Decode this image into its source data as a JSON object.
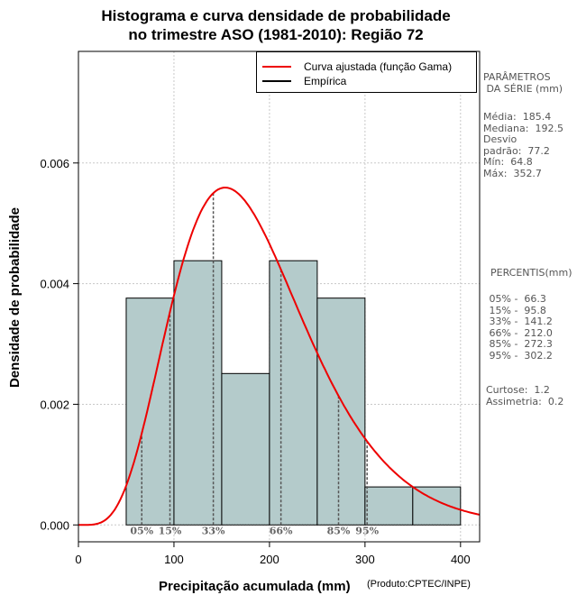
{
  "chart_data": {
    "type": "bar",
    "title_line1": "Histograma e curva densidade de probabilidade",
    "title_line2": "no trimestre ASO (1981-2010): Região 72",
    "xlabel": "Precipitação acumulada (mm)",
    "ylabel": "Densidade de probabilidade",
    "credit": "(Produto:CPTEC/INPE)",
    "xlim": [
      0,
      420
    ],
    "ylim": [
      -0.00028,
      0.00785
    ],
    "x_ticks": [
      0,
      100,
      200,
      300,
      400
    ],
    "y_ticks": [
      0.0,
      0.002,
      0.004,
      0.006
    ],
    "y_tick_labels": [
      "0.000",
      "0.002",
      "0.004",
      "0.006"
    ],
    "grid": true,
    "bins": [
      {
        "start": 50,
        "end": 100,
        "density": 0.00376
      },
      {
        "start": 100,
        "end": 150,
        "density": 0.00438
      },
      {
        "start": 150,
        "end": 200,
        "density": 0.00251
      },
      {
        "start": 200,
        "end": 250,
        "density": 0.00438
      },
      {
        "start": 250,
        "end": 300,
        "density": 0.00376
      },
      {
        "start": 300,
        "end": 350,
        "density": 0.00063
      },
      {
        "start": 350,
        "end": 400,
        "density": 0.00063
      }
    ],
    "gamma_fit": {
      "shape": 5.8,
      "scale": 32.0
    },
    "percentile_markers": [
      {
        "label": "05%",
        "x": 66.3
      },
      {
        "label": "15%",
        "x": 95.8
      },
      {
        "label": "33%",
        "x": 141.2
      },
      {
        "label": "66%",
        "x": 212.0
      },
      {
        "label": "85%",
        "x": 272.3
      },
      {
        "label": "95%",
        "x": 302.2
      }
    ],
    "legend": {
      "position": "top-right",
      "entries": [
        {
          "label": "Curva ajustada (função Gama)",
          "color": "#ee0000"
        },
        {
          "label": "Empírica",
          "color": "#000000"
        }
      ]
    },
    "colors": {
      "bar_fill": "#b4cbcb",
      "curve": "#ee0000",
      "marker": "#555555"
    }
  },
  "side_panel": {
    "params_title": "PARÂMETROS\n DA SÉRIE (mm)",
    "params": "Média:  185.4\nMediana:  192.5\nDesvio\npadrão:  77.2\nMín:  64.8\nMáx:  352.7",
    "percentiles_title": "PERCENTIS(mm)",
    "percentiles": " 05% -  66.3\n 15% -  95.8\n 33% -  141.2\n 66% -  212.0\n 85% -  272.3\n 95% -  302.2",
    "shape_stats": "Curtose:  1.2\nAssimetria:  0.2"
  }
}
